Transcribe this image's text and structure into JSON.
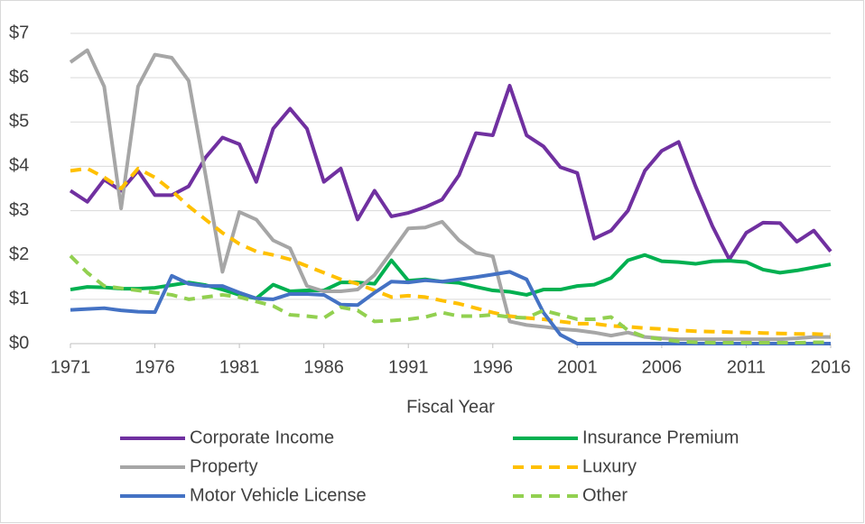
{
  "chart_data": {
    "type": "line",
    "xlabel": "Fiscal Year",
    "x": [
      1971,
      1972,
      1973,
      1974,
      1975,
      1976,
      1977,
      1978,
      1979,
      1980,
      1981,
      1982,
      1983,
      1984,
      1985,
      1986,
      1987,
      1988,
      1989,
      1990,
      1991,
      1992,
      1993,
      1994,
      1995,
      1996,
      1997,
      1998,
      1999,
      2000,
      2001,
      2002,
      2003,
      2004,
      2005,
      2006,
      2007,
      2008,
      2009,
      2010,
      2011,
      2012,
      2013,
      2014,
      2015,
      2016
    ],
    "xlim": [
      1971,
      2016
    ],
    "xticks": [
      1971,
      1976,
      1981,
      1986,
      1991,
      1996,
      2001,
      2006,
      2011,
      2016
    ],
    "ylim": [
      0,
      7
    ],
    "yticks": [
      {
        "value": 0,
        "label": "$0"
      },
      {
        "value": 1,
        "label": "$1"
      },
      {
        "value": 2,
        "label": "$2"
      },
      {
        "value": 3,
        "label": "$3"
      },
      {
        "value": 4,
        "label": "$4"
      },
      {
        "value": 5,
        "label": "$5"
      },
      {
        "value": 6,
        "label": "$6"
      },
      {
        "value": 7,
        "label": "$7"
      }
    ],
    "grid": true,
    "series": [
      {
        "name": "Corporate Income",
        "color": "#7030a0",
        "dashed": false,
        "values": [
          3.45,
          3.2,
          3.7,
          3.45,
          3.9,
          3.35,
          3.35,
          3.55,
          4.2,
          4.65,
          4.5,
          3.65,
          4.85,
          5.3,
          4.85,
          3.65,
          3.95,
          2.8,
          3.45,
          2.87,
          2.95,
          3.08,
          3.25,
          3.8,
          4.75,
          4.7,
          5.82,
          4.7,
          4.45,
          3.98,
          3.85,
          2.37,
          2.55,
          3.0,
          3.9,
          4.35,
          4.55,
          3.55,
          2.65,
          1.9,
          2.5,
          2.73,
          2.72,
          2.3,
          2.55,
          2.08
        ]
      },
      {
        "name": "Insurance Premium",
        "color": "#00b050",
        "dashed": false,
        "values": [
          1.22,
          1.28,
          1.27,
          1.24,
          1.24,
          1.26,
          1.32,
          1.38,
          1.32,
          1.22,
          1.1,
          1.02,
          1.33,
          1.18,
          1.2,
          1.2,
          1.38,
          1.38,
          1.35,
          1.88,
          1.42,
          1.45,
          1.4,
          1.37,
          1.28,
          1.2,
          1.17,
          1.1,
          1.22,
          1.22,
          1.3,
          1.33,
          1.48,
          1.88,
          2.0,
          1.86,
          1.84,
          1.8,
          1.86,
          1.87,
          1.84,
          1.67,
          1.6,
          1.65,
          1.72,
          1.79
        ]
      },
      {
        "name": "Property",
        "color": "#a6a6a6",
        "dashed": false,
        "values": [
          6.35,
          6.62,
          5.8,
          3.05,
          5.8,
          6.52,
          6.45,
          5.93,
          3.8,
          1.62,
          2.97,
          2.8,
          2.33,
          2.15,
          1.3,
          1.18,
          1.18,
          1.22,
          1.55,
          2.07,
          2.6,
          2.62,
          2.75,
          2.33,
          2.05,
          1.97,
          0.5,
          0.42,
          0.38,
          0.33,
          0.3,
          0.25,
          0.18,
          0.25,
          0.15,
          0.12,
          0.1,
          0.1,
          0.1,
          0.1,
          0.1,
          0.1,
          0.1,
          0.12,
          0.15,
          0.15
        ]
      },
      {
        "name": "Luxury",
        "color": "#ffc000",
        "dashed": true,
        "values": [
          3.9,
          3.95,
          3.75,
          3.5,
          3.95,
          3.75,
          3.45,
          3.1,
          2.8,
          2.5,
          2.25,
          2.08,
          2.0,
          1.9,
          1.75,
          1.6,
          1.45,
          1.35,
          1.2,
          1.05,
          1.08,
          1.05,
          0.97,
          0.9,
          0.8,
          0.7,
          0.62,
          0.58,
          0.55,
          0.5,
          0.45,
          0.45,
          0.4,
          0.38,
          0.35,
          0.33,
          0.3,
          0.28,
          0.27,
          0.26,
          0.25,
          0.24,
          0.23,
          0.22,
          0.22,
          0.2
        ]
      },
      {
        "name": "Motor Vehicle License",
        "color": "#4472c4",
        "dashed": false,
        "values": [
          0.76,
          0.78,
          0.8,
          0.75,
          0.72,
          0.71,
          1.53,
          1.35,
          1.3,
          1.3,
          1.15,
          1.02,
          1.0,
          1.12,
          1.12,
          1.1,
          0.88,
          0.87,
          1.15,
          1.4,
          1.38,
          1.43,
          1.4,
          1.45,
          1.5,
          1.56,
          1.62,
          1.45,
          0.7,
          0.2,
          0,
          0,
          0,
          0,
          0,
          0,
          0,
          0,
          0,
          0,
          0,
          0,
          0,
          0,
          0,
          0
        ]
      },
      {
        "name": "Other",
        "color": "#92d050",
        "dashed": true,
        "values": [
          1.98,
          1.6,
          1.3,
          1.25,
          1.2,
          1.15,
          1.1,
          1.0,
          1.05,
          1.1,
          1.05,
          0.95,
          0.85,
          0.65,
          0.62,
          0.58,
          0.82,
          0.75,
          0.5,
          0.52,
          0.55,
          0.6,
          0.7,
          0.62,
          0.62,
          0.65,
          0.6,
          0.58,
          0.75,
          0.65,
          0.55,
          0.55,
          0.6,
          0.3,
          0.15,
          0.1,
          0.05,
          0.03,
          0.02,
          0.02,
          0.02,
          0.02,
          0.02,
          0.02,
          0.03,
          0.03
        ]
      }
    ]
  }
}
